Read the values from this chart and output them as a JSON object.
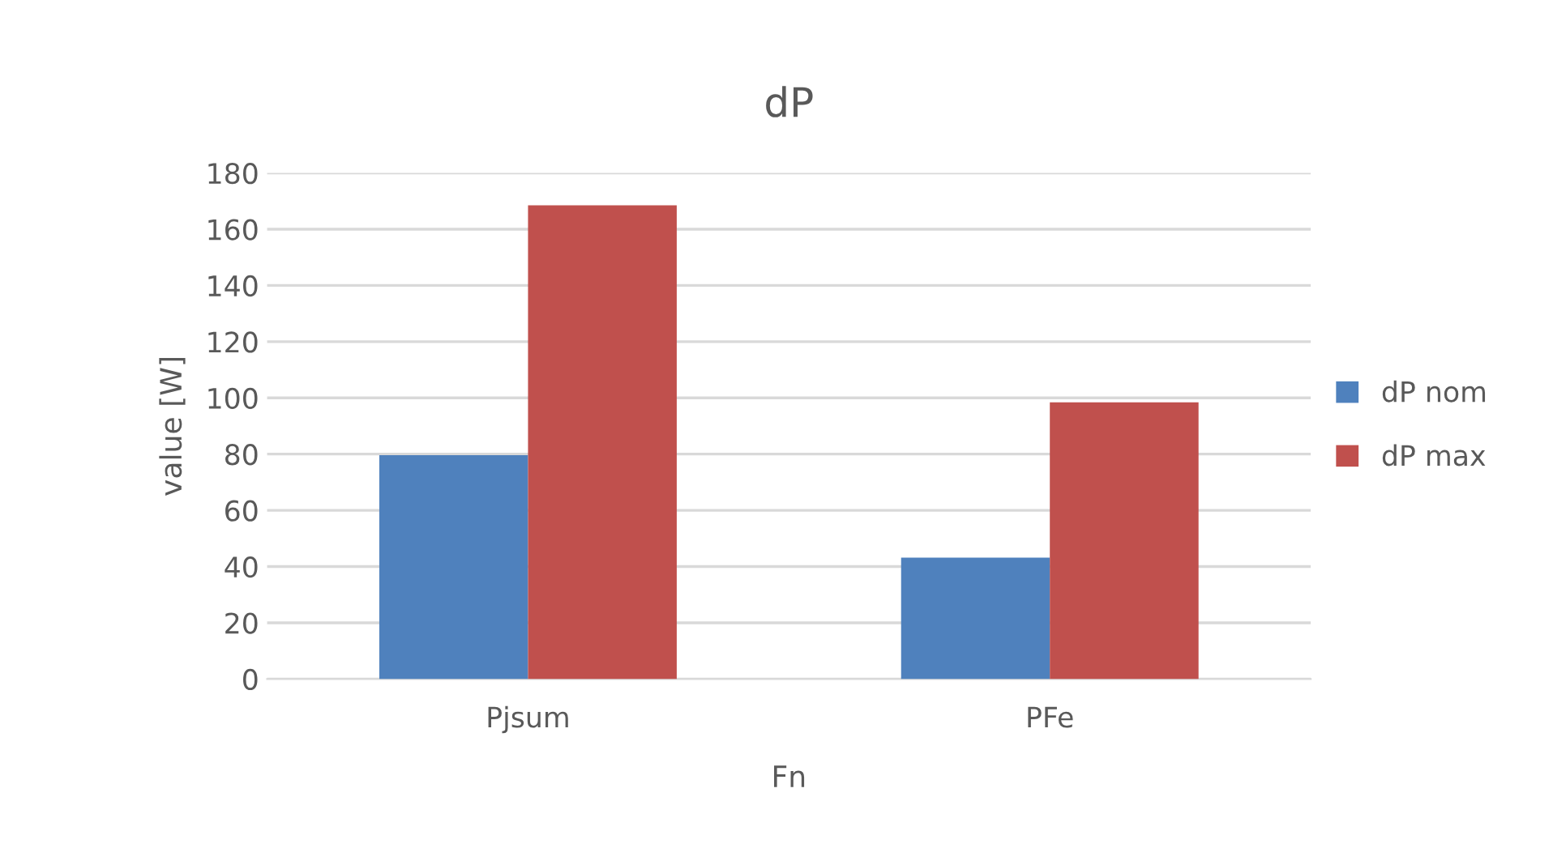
{
  "chart_data": {
    "type": "bar",
    "title": "dP",
    "xlabel": "Fn",
    "ylabel": "value [W]",
    "categories": [
      "Pjsum",
      "PFe"
    ],
    "series": [
      {
        "name": "dP nom",
        "color": "#4f81bd",
        "values": [
          79.6,
          43.2
        ]
      },
      {
        "name": "dP max",
        "color": "#c0504d",
        "values": [
          168.5,
          98.4
        ]
      }
    ],
    "ylim": [
      0,
      180
    ],
    "yticks": [
      0,
      20,
      40,
      60,
      80,
      100,
      120,
      140,
      160,
      180
    ],
    "grid": "y",
    "legend": "right"
  }
}
